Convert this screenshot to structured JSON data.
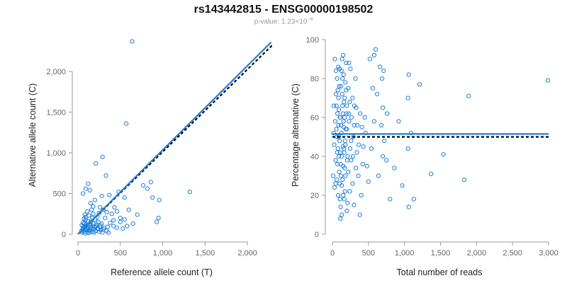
{
  "header": {
    "title": "rs143442815 - ENSG00000198502",
    "pvalue_prefix": "p-value: 1.23×10",
    "pvalue_exp": "−4"
  },
  "colors": {
    "points": "#1f7ed8",
    "fit": "#1f7ed8",
    "reference": "#000000"
  },
  "chart_data": [
    {
      "type": "scatter",
      "xlabel": "Reference allele count (T)",
      "ylabel": "Alternative allele count (C)",
      "xlim": [
        0,
        2300
      ],
      "ylim": [
        0,
        2400
      ],
      "xticks": [
        0,
        500,
        1000,
        1500,
        2000
      ],
      "xtick_labels": [
        "0",
        "500",
        "1,000",
        "1,500",
        "2,000"
      ],
      "yticks": [
        0,
        500,
        1000,
        1500,
        2000
      ],
      "ytick_labels": [
        "0",
        "500",
        "1,000",
        "1,500",
        "2,000"
      ],
      "fit_line": {
        "x": [
          0,
          2280
        ],
        "y": [
          0,
          2360
        ]
      },
      "reference_line": {
        "x": [
          0,
          2300
        ],
        "y": [
          0,
          2330
        ]
      },
      "points": [
        [
          640,
          2370
        ],
        [
          570,
          1360
        ],
        [
          1320,
          520
        ],
        [
          960,
          420
        ],
        [
          290,
          950
        ],
        [
          210,
          870
        ],
        [
          330,
          720
        ],
        [
          90,
          560
        ],
        [
          140,
          540
        ],
        [
          120,
          620
        ],
        [
          60,
          500
        ],
        [
          280,
          470
        ],
        [
          370,
          480
        ],
        [
          770,
          600
        ],
        [
          860,
          640
        ],
        [
          820,
          560
        ],
        [
          880,
          450
        ],
        [
          950,
          200
        ],
        [
          930,
          150
        ],
        [
          700,
          240
        ],
        [
          650,
          130
        ],
        [
          550,
          450
        ],
        [
          500,
          200
        ],
        [
          460,
          280
        ],
        [
          430,
          330
        ],
        [
          600,
          300
        ],
        [
          550,
          180
        ],
        [
          400,
          250
        ],
        [
          300,
          300
        ],
        [
          250,
          260
        ],
        [
          200,
          420
        ],
        [
          180,
          340
        ],
        [
          160,
          300
        ],
        [
          110,
          280
        ],
        [
          130,
          230
        ],
        [
          80,
          240
        ],
        [
          70,
          190
        ],
        [
          60,
          140
        ],
        [
          90,
          180
        ],
        [
          100,
          120
        ],
        [
          150,
          150
        ],
        [
          170,
          200
        ],
        [
          200,
          180
        ],
        [
          220,
          120
        ],
        [
          240,
          150
        ],
        [
          260,
          90
        ],
        [
          280,
          130
        ],
        [
          300,
          60
        ],
        [
          350,
          90
        ],
        [
          380,
          140
        ],
        [
          420,
          100
        ],
        [
          460,
          80
        ],
        [
          500,
          150
        ],
        [
          530,
          70
        ],
        [
          580,
          100
        ],
        [
          320,
          200
        ],
        [
          45,
          110
        ],
        [
          55,
          60
        ],
        [
          70,
          30
        ],
        [
          80,
          80
        ],
        [
          95,
          50
        ],
        [
          110,
          20
        ],
        [
          125,
          70
        ],
        [
          140,
          40
        ],
        [
          155,
          90
        ],
        [
          170,
          30
        ],
        [
          185,
          60
        ],
        [
          200,
          90
        ],
        [
          210,
          40
        ],
        [
          230,
          70
        ],
        [
          250,
          30
        ],
        [
          270,
          50
        ],
        [
          290,
          20
        ],
        [
          310,
          80
        ],
        [
          340,
          40
        ],
        [
          360,
          20
        ],
        [
          50,
          20
        ],
        [
          65,
          95
        ],
        [
          75,
          130
        ],
        [
          85,
          10
        ],
        [
          100,
          70
        ],
        [
          115,
          110
        ],
        [
          130,
          15
        ],
        [
          145,
          120
        ],
        [
          160,
          60
        ],
        [
          175,
          100
        ],
        [
          190,
          20
        ],
        [
          40,
          40
        ],
        [
          60,
          75
        ],
        [
          90,
          100
        ],
        [
          120,
          45
        ],
        [
          150,
          80
        ],
        [
          180,
          130
        ],
        [
          215,
          100
        ],
        [
          240,
          60
        ],
        [
          265,
          110
        ],
        [
          180,
          250
        ],
        [
          230,
          210
        ],
        [
          120,
          160
        ],
        [
          90,
          210
        ],
        [
          150,
          380
        ],
        [
          260,
          330
        ],
        [
          340,
          270
        ],
        [
          480,
          520
        ],
        [
          420,
          170
        ]
      ]
    },
    {
      "type": "scatter",
      "xlabel": "Total number of reads",
      "ylabel": "Percentage alternative (C)",
      "xlim": [
        0,
        3000
      ],
      "ylim": [
        0,
        100
      ],
      "xticks": [
        0,
        500,
        1000,
        1500,
        2000,
        2500,
        3000
      ],
      "xtick_labels": [
        "0",
        "500",
        "1,000",
        "1,500",
        "2,000",
        "2,500",
        "3,000"
      ],
      "yticks": [
        0,
        20,
        40,
        60,
        80,
        100
      ],
      "ytick_labels": [
        "0",
        "20",
        "40",
        "60",
        "80",
        "100"
      ],
      "fit_line": {
        "x": [
          0,
          3000
        ],
        "y": [
          51.5,
          51.5
        ]
      },
      "reference_line": {
        "x": [
          0,
          3000
        ],
        "y": [
          50,
          50
        ]
      },
      "points": [
        [
          2990,
          79
        ],
        [
          1890,
          71
        ],
        [
          1830,
          28
        ],
        [
          1370,
          31
        ],
        [
          1540,
          41
        ],
        [
          1210,
          77
        ],
        [
          1060,
          82
        ],
        [
          1060,
          14
        ],
        [
          1130,
          18
        ],
        [
          1090,
          52
        ],
        [
          1050,
          44
        ],
        [
          1050,
          70
        ],
        [
          970,
          25
        ],
        [
          800,
          18
        ],
        [
          750,
          38
        ],
        [
          720,
          48
        ],
        [
          700,
          65
        ],
        [
          700,
          40
        ],
        [
          690,
          80
        ],
        [
          710,
          84
        ],
        [
          660,
          86
        ],
        [
          600,
          95
        ],
        [
          580,
          92
        ],
        [
          520,
          90
        ],
        [
          620,
          72
        ],
        [
          560,
          75
        ],
        [
          500,
          27
        ],
        [
          480,
          35
        ],
        [
          450,
          60
        ],
        [
          430,
          45
        ],
        [
          410,
          55
        ],
        [
          400,
          20
        ],
        [
          380,
          10
        ],
        [
          360,
          30
        ],
        [
          340,
          42
        ],
        [
          330,
          65
        ],
        [
          320,
          80
        ],
        [
          300,
          15
        ],
        [
          290,
          50
        ],
        [
          280,
          70
        ],
        [
          260,
          38
        ],
        [
          250,
          85
        ],
        [
          240,
          22
        ],
        [
          230,
          58
        ],
        [
          220,
          75
        ],
        [
          210,
          40
        ],
        [
          200,
          12
        ],
        [
          195,
          62
        ],
        [
          190,
          88
        ],
        [
          180,
          30
        ],
        [
          175,
          48
        ],
        [
          170,
          70
        ],
        [
          165,
          18
        ],
        [
          160,
          55
        ],
        [
          155,
          82
        ],
        [
          150,
          35
        ],
        [
          145,
          45
        ],
        [
          140,
          66
        ],
        [
          135,
          90
        ],
        [
          130,
          25
        ],
        [
          125,
          52
        ],
        [
          120,
          76
        ],
        [
          115,
          14
        ],
        [
          110,
          42
        ],
        [
          105,
          60
        ],
        [
          100,
          85
        ],
        [
          95,
          32
        ],
        [
          90,
          50
        ],
        [
          85,
          70
        ],
        [
          80,
          20
        ],
        [
          75,
          44
        ],
        [
          70,
          62
        ],
        [
          65,
          80
        ],
        [
          60,
          28
        ],
        [
          55,
          54
        ],
        [
          50,
          72
        ],
        [
          45,
          38
        ],
        [
          40,
          58
        ],
        [
          35,
          90
        ],
        [
          30,
          24
        ],
        [
          25,
          46
        ],
        [
          20,
          66
        ],
        [
          15,
          52
        ],
        [
          10,
          30
        ],
        [
          130,
          40
        ],
        [
          150,
          20
        ],
        [
          170,
          60
        ],
        [
          120,
          30
        ],
        [
          140,
          80
        ],
        [
          110,
          60
        ],
        [
          160,
          44
        ],
        [
          180,
          78
        ],
        [
          100,
          26
        ],
        [
          90,
          64
        ],
        [
          80,
          86
        ],
        [
          70,
          36
        ],
        [
          60,
          50
        ],
        [
          50,
          84
        ],
        [
          200,
          54
        ],
        [
          220,
          32
        ],
        [
          240,
          68
        ],
        [
          260,
          48
        ],
        [
          280,
          26
        ],
        [
          300,
          56
        ],
        [
          210,
          16
        ],
        [
          230,
          88
        ],
        [
          130,
          10
        ],
        [
          150,
          92
        ],
        [
          170,
          34
        ],
        [
          190,
          74
        ],
        [
          110,
          8
        ],
        [
          90,
          40
        ],
        [
          120,
          56
        ],
        [
          140,
          28
        ],
        [
          160,
          68
        ],
        [
          180,
          46
        ],
        [
          100,
          48
        ],
        [
          200,
          66
        ],
        [
          135,
          72
        ],
        [
          115,
          36
        ],
        [
          155,
          58
        ],
        [
          95,
          76
        ],
        [
          175,
          22
        ],
        [
          145,
          62
        ],
        [
          125,
          84
        ],
        [
          105,
          18
        ],
        [
          85,
          56
        ],
        [
          65,
          42
        ],
        [
          75,
          74
        ],
        [
          55,
          66
        ],
        [
          45,
          26
        ],
        [
          165,
          42
        ],
        [
          185,
          54
        ],
        [
          205,
          38
        ],
        [
          225,
          62
        ],
        [
          245,
          44
        ],
        [
          265,
          60
        ],
        [
          285,
          40
        ],
        [
          305,
          66
        ],
        [
          325,
          34
        ],
        [
          345,
          56
        ],
        [
          365,
          46
        ],
        [
          385,
          62
        ],
        [
          420,
          36
        ],
        [
          460,
          52
        ],
        [
          540,
          44
        ],
        [
          580,
          58
        ],
        [
          640,
          30
        ],
        [
          680,
          56
        ],
        [
          760,
          62
        ],
        [
          860,
          34
        ],
        [
          920,
          58
        ]
      ]
    }
  ]
}
